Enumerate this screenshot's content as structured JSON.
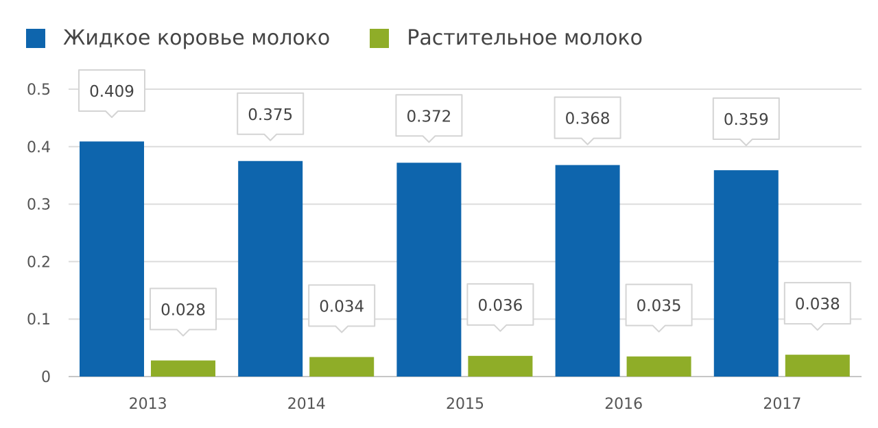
{
  "chart_data": {
    "type": "bar",
    "categories": [
      "2013",
      "2014",
      "2015",
      "2016",
      "2017"
    ],
    "series": [
      {
        "name": "Жидкое коровье молоко",
        "color": "#0e65ad",
        "values": [
          0.409,
          0.375,
          0.372,
          0.368,
          0.359
        ],
        "labels": [
          "0.409",
          "0.375",
          "0.372",
          "0.368",
          "0.359"
        ]
      },
      {
        "name": "Растительное молоко",
        "color": "#8fad28",
        "values": [
          0.028,
          0.034,
          0.036,
          0.035,
          0.038
        ],
        "labels": [
          "0.028",
          "0.034",
          "0.036",
          "0.035",
          "0.038"
        ]
      }
    ],
    "ylim": [
      0,
      0.5
    ],
    "yticks": [
      0,
      0.1,
      0.2,
      0.3,
      0.4,
      0.5
    ],
    "ytick_labels": [
      "0",
      "0.1",
      "0.2",
      "0.3",
      "0.4",
      "0.5"
    ],
    "grid": true,
    "legend": "top-left",
    "title": "",
    "xlabel": "",
    "ylabel": ""
  }
}
